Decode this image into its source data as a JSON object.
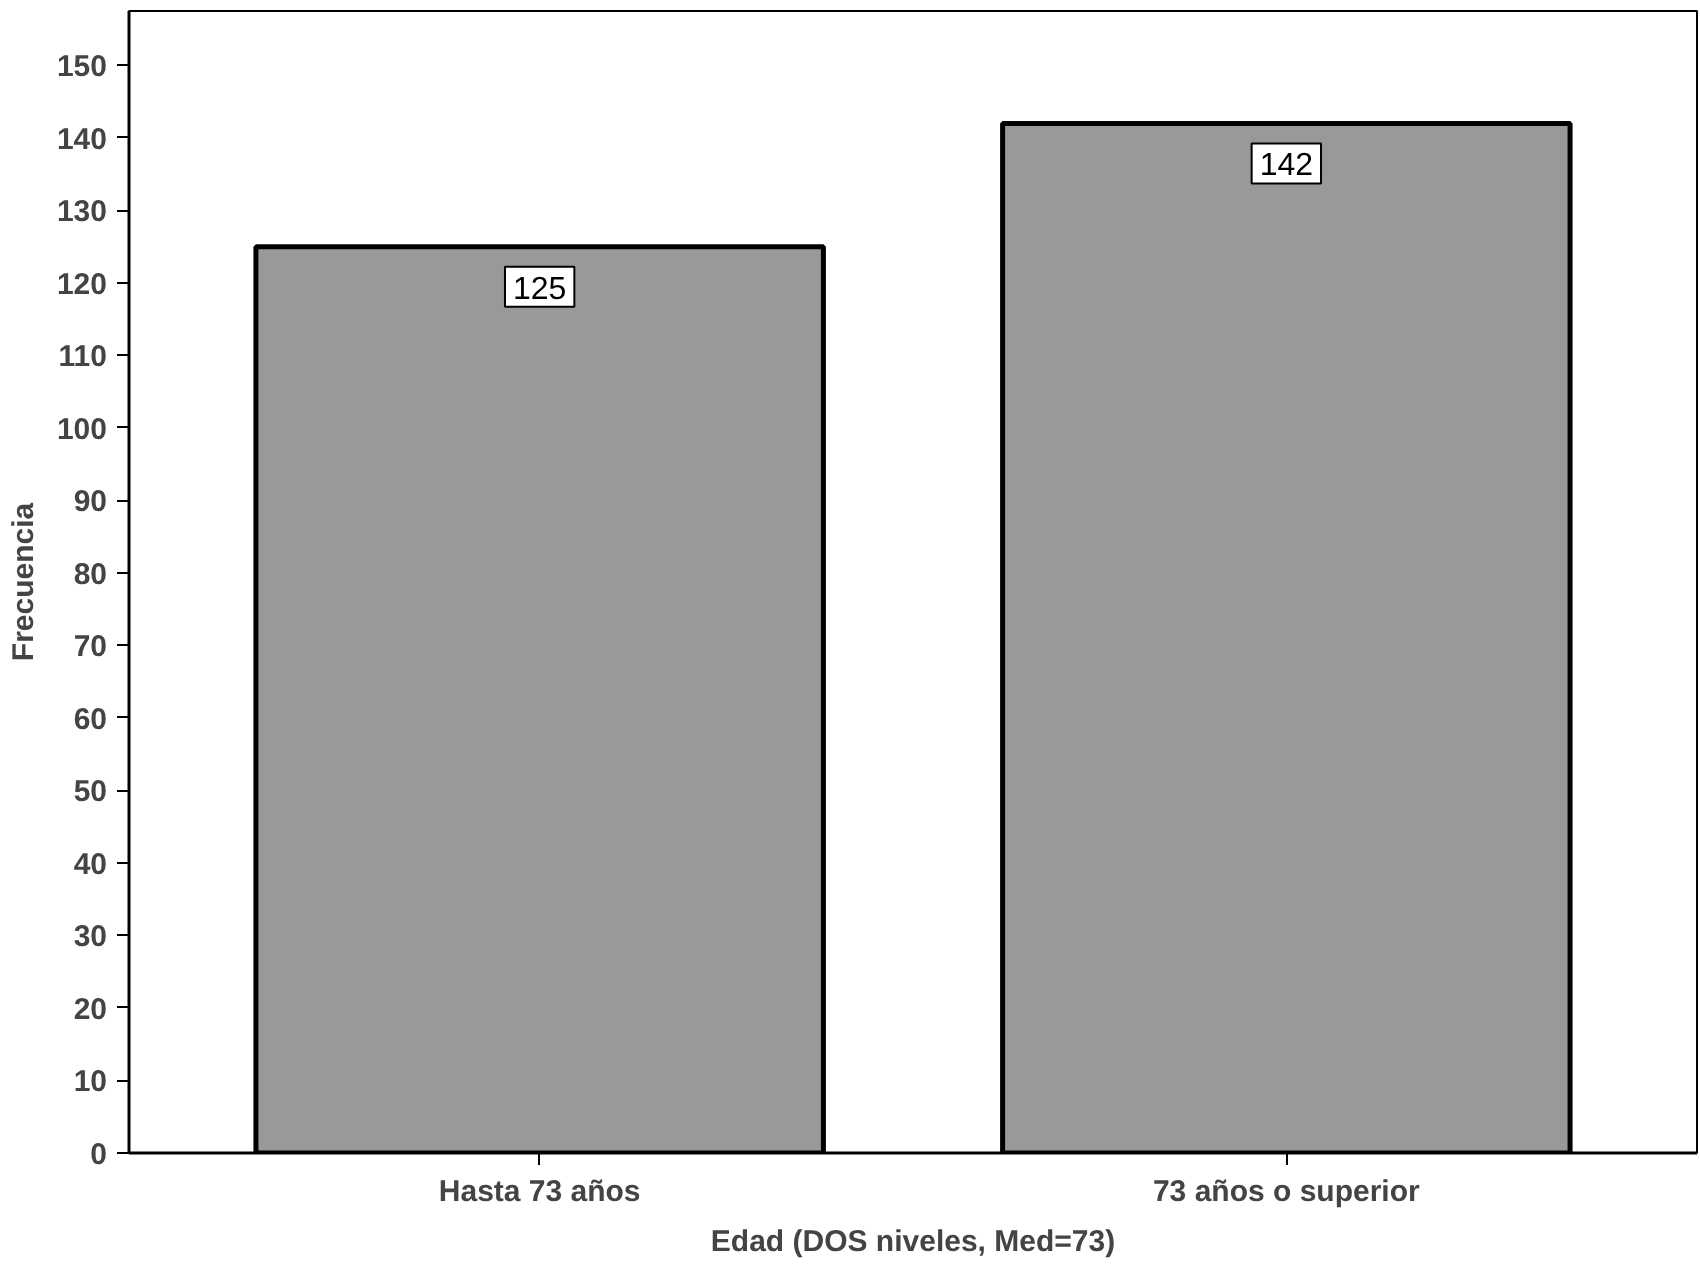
{
  "chart_data": {
    "type": "bar",
    "xlabel": "Edad (DOS niveles, Med=73)",
    "ylabel": "Frecuencia",
    "categories": [
      "Hasta 73 años",
      "73 años o superior"
    ],
    "values": [
      125,
      142
    ],
    "color": "#999999",
    "ylim": [
      0,
      157.5
    ],
    "yticks": [
      0,
      10,
      20,
      30,
      40,
      50,
      60,
      70,
      80,
      90,
      100,
      110,
      120,
      130,
      140,
      150
    ],
    "data_labels": true,
    "grid": false
  }
}
